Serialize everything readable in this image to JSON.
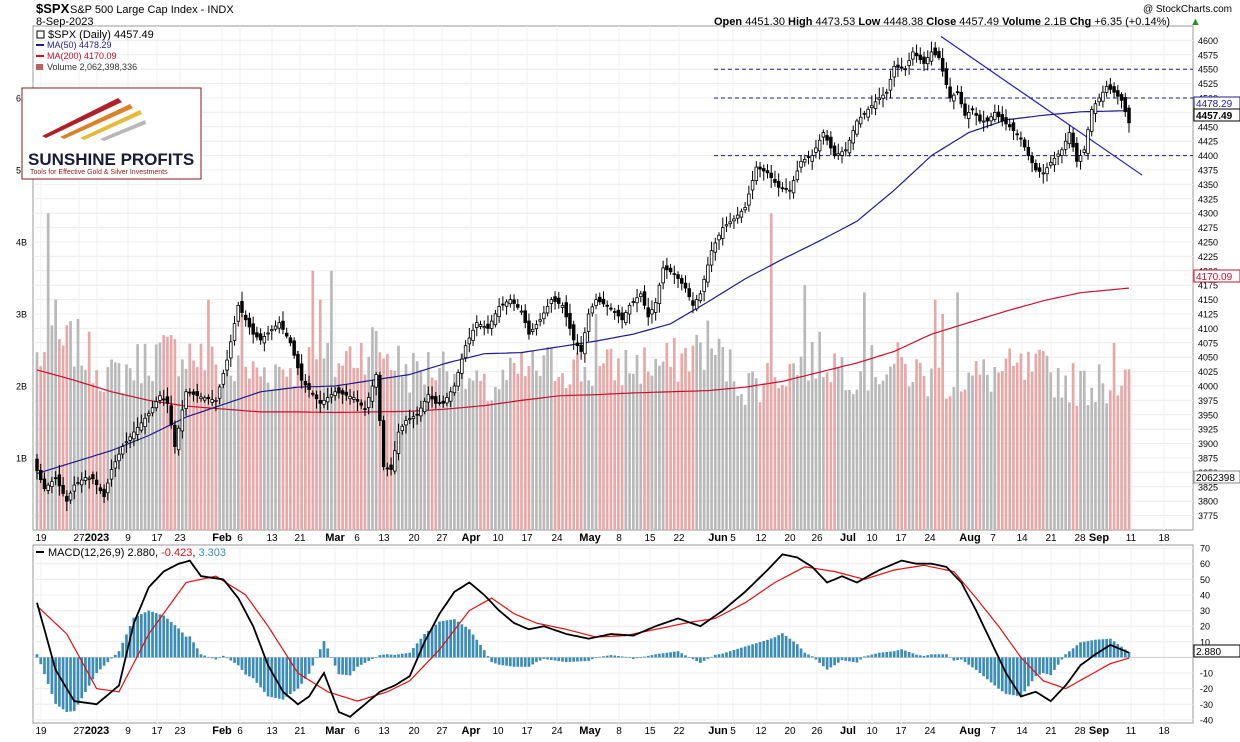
{
  "header": {
    "symbol": "$SPX",
    "name": "S&P 500 Large Cap Index",
    "exchange": "INDX",
    "date": "8-Sep-2023",
    "watermark": "@ StockCharts.com",
    "open_label": "Open",
    "open": "4451.30",
    "high_label": "High",
    "high": "4473.53",
    "low_label": "Low",
    "low": "4448.38",
    "close_label": "Close",
    "close": "4457.49",
    "volume_label": "Volume",
    "volume": "2.1B",
    "chg_label": "Chg",
    "chg": "+6.35 (+0.14%)",
    "chg_arrow": "▲"
  },
  "legend": {
    "price": "$SPX (Daily) 4457.49",
    "ma50": "MA(50) 4478.29",
    "ma200": "MA(200) 4170.09",
    "volume": "Volume 2,062,398,336"
  },
  "logo": {
    "name": "SUNSHINE PROFITS",
    "tagline": "Tools for Effective Gold & Silver Investments"
  },
  "macd_legend": {
    "label": "MACD(12,26,9)",
    "macd": "2.880",
    "signal": "-0.423",
    "hist": "3.303"
  },
  "badges": {
    "ma50": "4478.29",
    "close": "4457.49",
    "ma200": "4170.09",
    "volume": "2062398",
    "macd": "2.880"
  },
  "colors": {
    "up_candle": "#ffffff",
    "down_candle": "#000000",
    "ma50": "#1c1c8c",
    "ma200": "#c8102e",
    "vol_up": "#b9b9b9",
    "vol_down": "#e8a8a8",
    "hist": "#3b8db8",
    "macd_line": "#000000",
    "signal_line": "#e01010",
    "trend": "#2020c0"
  },
  "chart_data": {
    "type": "candlestick",
    "price_axis": {
      "ylim": [
        3750,
        4625
      ],
      "ticks": [
        "4600",
        "4575",
        "4550",
        "4525",
        "4500",
        "4475",
        "4450",
        "4425",
        "4400",
        "4375",
        "4350",
        "4325",
        "4300",
        "4275",
        "4250",
        "4225",
        "4200",
        "4175",
        "4150",
        "4125",
        "4100",
        "4075",
        "4050",
        "4025",
        "4000",
        "3975",
        "3950",
        "3925",
        "3900",
        "3875",
        "3850",
        "3825",
        "3800",
        "3775"
      ]
    },
    "volume_axis": {
      "ylim": [
        0,
        7
      ],
      "unit": "B",
      "ticks": [
        "1B",
        "2B",
        "3B",
        "4B",
        "5B",
        "6B"
      ]
    },
    "macd_axis": {
      "ylim": [
        -42,
        72
      ],
      "ticks": [
        "70",
        "60",
        "50",
        "40",
        "30",
        "20",
        "10",
        "-10",
        "-20",
        "-30",
        "-40"
      ]
    },
    "x_labels": [
      "19",
      "27",
      "2023",
      "9",
      "17",
      "23",
      "Feb",
      "6",
      "13",
      "21",
      "Mar",
      "6",
      "13",
      "20",
      "27",
      "Apr",
      "10",
      "17",
      "24",
      "May",
      "8",
      "15",
      "22",
      "Jun",
      "5",
      "12",
      "20",
      "26",
      "Jul",
      "10",
      "17",
      "24",
      "Aug",
      "7",
      "14",
      "21",
      "28",
      "Sep",
      "11",
      "18"
    ],
    "x_label_positions": [
      41,
      79,
      97,
      128,
      157,
      180,
      222,
      240,
      272,
      300,
      335,
      357,
      384,
      414,
      442,
      471,
      498,
      527,
      557,
      590,
      619,
      650,
      679,
      718,
      733,
      761,
      790,
      817,
      848,
      872,
      901,
      930,
      970,
      993,
      1022,
      1051,
      1080,
      1099,
      1131,
      1164
    ],
    "x_label_bold": [
      "2023",
      "Feb",
      "Mar",
      "Apr",
      "May",
      "Jun",
      "Jul",
      "Aug",
      "Sep"
    ],
    "horizontal_levels": [
      4550,
      4500,
      4400
    ],
    "trendline": {
      "from": [
        "2023-07-27",
        4607
      ],
      "to": [
        "2023-09-11",
        4366
      ]
    },
    "close_key": [
      [
        0,
        3853
      ],
      [
        2,
        3822
      ],
      [
        5,
        3840
      ],
      [
        8,
        3800
      ],
      [
        10,
        3828
      ],
      [
        13,
        3841
      ],
      [
        15,
        3839
      ],
      [
        18,
        3808
      ],
      [
        20,
        3855
      ],
      [
        23,
        3895
      ],
      [
        26,
        3920
      ],
      [
        30,
        3952
      ],
      [
        33,
        3983
      ],
      [
        35,
        3970
      ],
      [
        37,
        3895
      ],
      [
        40,
        3990
      ],
      [
        44,
        3981
      ],
      [
        48,
        3975
      ],
      [
        51,
        4045
      ],
      [
        54,
        4140
      ],
      [
        58,
        4090
      ],
      [
        60,
        4080
      ],
      [
        65,
        4110
      ],
      [
        68,
        4075
      ],
      [
        71,
        4010
      ],
      [
        76,
        3970
      ],
      [
        80,
        3990
      ],
      [
        85,
        3980
      ],
      [
        88,
        3960
      ],
      [
        91,
        4020
      ],
      [
        93,
        3860
      ],
      [
        95,
        3855
      ],
      [
        97,
        3920
      ],
      [
        99,
        3940
      ],
      [
        102,
        3950
      ],
      [
        105,
        3985
      ],
      [
        107,
        3970
      ],
      [
        109,
        3970
      ],
      [
        112,
        4000
      ],
      [
        115,
        4070
      ],
      [
        118,
        4110
      ],
      [
        121,
        4100
      ],
      [
        124,
        4138
      ],
      [
        127,
        4150
      ],
      [
        130,
        4130
      ],
      [
        132,
        4090
      ],
      [
        135,
        4115
      ],
      [
        138,
        4150
      ],
      [
        141,
        4140
      ],
      [
        144,
        4080
      ],
      [
        146,
        4060
      ],
      [
        148,
        4125
      ],
      [
        150,
        4150
      ],
      [
        154,
        4135
      ],
      [
        157,
        4115
      ],
      [
        159,
        4140
      ],
      [
        162,
        4160
      ],
      [
        164,
        4120
      ],
      [
        166,
        4145
      ],
      [
        168,
        4205
      ],
      [
        171,
        4195
      ],
      [
        174,
        4170
      ],
      [
        176,
        4140
      ],
      [
        178,
        4160
      ],
      [
        181,
        4235
      ],
      [
        184,
        4275
      ],
      [
        187,
        4290
      ],
      [
        190,
        4310
      ],
      [
        193,
        4380
      ],
      [
        196,
        4370
      ],
      [
        199,
        4345
      ],
      [
        202,
        4340
      ],
      [
        205,
        4390
      ],
      [
        208,
        4400
      ],
      [
        211,
        4440
      ],
      [
        214,
        4400
      ],
      [
        217,
        4410
      ],
      [
        220,
        4460
      ],
      [
        223,
        4480
      ],
      [
        226,
        4500
      ],
      [
        228,
        4510
      ],
      [
        230,
        4555
      ],
      [
        233,
        4550
      ],
      [
        235,
        4580
      ],
      [
        238,
        4560
      ],
      [
        240,
        4580
      ],
      [
        242,
        4570
      ],
      [
        245,
        4500
      ],
      [
        247,
        4510
      ],
      [
        249,
        4470
      ],
      [
        251,
        4480
      ],
      [
        253,
        4460
      ],
      [
        255,
        4460
      ],
      [
        257,
        4475
      ],
      [
        259,
        4460
      ],
      [
        261,
        4450
      ],
      [
        264,
        4430
      ],
      [
        266,
        4400
      ],
      [
        268,
        4375
      ],
      [
        270,
        4370
      ],
      [
        272,
        4388
      ],
      [
        275,
        4410
      ],
      [
        277,
        4440
      ],
      [
        279,
        4390
      ],
      [
        281,
        4410
      ],
      [
        283,
        4480
      ],
      [
        285,
        4500
      ],
      [
        287,
        4520
      ],
      [
        289,
        4510
      ],
      [
        291,
        4496
      ],
      [
        293,
        4457
      ]
    ],
    "ma50_key": [
      [
        0,
        3848
      ],
      [
        10,
        3868
      ],
      [
        20,
        3888
      ],
      [
        30,
        3914
      ],
      [
        40,
        3946
      ],
      [
        50,
        3968
      ],
      [
        60,
        3990
      ],
      [
        70,
        3998
      ],
      [
        80,
        4000
      ],
      [
        90,
        4010
      ],
      [
        100,
        4020
      ],
      [
        110,
        4040
      ],
      [
        120,
        4056
      ],
      [
        130,
        4058
      ],
      [
        140,
        4068
      ],
      [
        150,
        4078
      ],
      [
        160,
        4090
      ],
      [
        170,
        4108
      ],
      [
        180,
        4146
      ],
      [
        190,
        4186
      ],
      [
        200,
        4220
      ],
      [
        210,
        4252
      ],
      [
        220,
        4286
      ],
      [
        230,
        4340
      ],
      [
        240,
        4400
      ],
      [
        250,
        4440
      ],
      [
        260,
        4462
      ],
      [
        270,
        4470
      ],
      [
        280,
        4476
      ],
      [
        293,
        4478
      ]
    ],
    "ma200_key": [
      [
        0,
        4028
      ],
      [
        10,
        4010
      ],
      [
        20,
        3990
      ],
      [
        30,
        3975
      ],
      [
        40,
        3965
      ],
      [
        50,
        3960
      ],
      [
        60,
        3955
      ],
      [
        70,
        3955
      ],
      [
        80,
        3954
      ],
      [
        90,
        3955
      ],
      [
        100,
        3956
      ],
      [
        110,
        3960
      ],
      [
        120,
        3966
      ],
      [
        130,
        3975
      ],
      [
        140,
        3983
      ],
      [
        150,
        3985
      ],
      [
        160,
        3988
      ],
      [
        170,
        3990
      ],
      [
        180,
        3992
      ],
      [
        190,
        3998
      ],
      [
        200,
        4008
      ],
      [
        210,
        4024
      ],
      [
        220,
        4040
      ],
      [
        230,
        4060
      ],
      [
        240,
        4090
      ],
      [
        250,
        4110
      ],
      [
        260,
        4130
      ],
      [
        270,
        4148
      ],
      [
        280,
        4162
      ],
      [
        293,
        4170
      ]
    ],
    "volume_key": [
      [
        0,
        2.4
      ],
      [
        10,
        2.6
      ],
      [
        20,
        2.1
      ],
      [
        30,
        2.4
      ],
      [
        40,
        2.5
      ],
      [
        50,
        2.2
      ],
      [
        60,
        2.2
      ],
      [
        70,
        2.3
      ],
      [
        80,
        2.3
      ],
      [
        90,
        2.6
      ],
      [
        100,
        2.2
      ],
      [
        110,
        2.3
      ],
      [
        120,
        1.9
      ],
      [
        130,
        2.2
      ],
      [
        140,
        2.3
      ],
      [
        150,
        2.2
      ],
      [
        160,
        2.3
      ],
      [
        170,
        2.3
      ],
      [
        180,
        2.6
      ],
      [
        190,
        2.0
      ],
      [
        200,
        2.2
      ],
      [
        210,
        2.4
      ],
      [
        220,
        2.2
      ],
      [
        230,
        2.3
      ],
      [
        240,
        2.1
      ],
      [
        250,
        2.1
      ],
      [
        260,
        2.2
      ],
      [
        270,
        2.2
      ],
      [
        280,
        2.0
      ],
      [
        293,
        2.06
      ]
    ],
    "volume_spikes": [
      [
        3,
        4.4
      ],
      [
        5,
        3.2
      ],
      [
        46,
        3.2
      ],
      [
        55,
        3.0
      ],
      [
        74,
        3.6
      ],
      [
        76,
        3.2
      ],
      [
        79,
        3.6
      ],
      [
        150,
        3.0
      ],
      [
        197,
        4.4
      ],
      [
        206,
        3.4
      ],
      [
        222,
        3.3
      ],
      [
        241,
        3.2
      ],
      [
        243,
        3.0
      ],
      [
        247,
        3.3
      ],
      [
        285,
        2.3
      ],
      [
        289,
        2.6
      ]
    ],
    "macd_key": [
      [
        0,
        35
      ],
      [
        5,
        -8
      ],
      [
        10,
        -28
      ],
      [
        16,
        -30
      ],
      [
        22,
        -18
      ],
      [
        26,
        22
      ],
      [
        30,
        45
      ],
      [
        34,
        55
      ],
      [
        38,
        60
      ],
      [
        41,
        62
      ],
      [
        44,
        52
      ],
      [
        50,
        50
      ],
      [
        54,
        38
      ],
      [
        58,
        20
      ],
      [
        62,
        -5
      ],
      [
        66,
        -22
      ],
      [
        70,
        -30
      ],
      [
        73,
        -25
      ],
      [
        77,
        -10
      ],
      [
        81,
        -35
      ],
      [
        84,
        -38
      ],
      [
        88,
        -30
      ],
      [
        92,
        -22
      ],
      [
        96,
        -18
      ],
      [
        100,
        -12
      ],
      [
        104,
        10
      ],
      [
        108,
        28
      ],
      [
        112,
        42
      ],
      [
        116,
        48
      ],
      [
        120,
        40
      ],
      [
        124,
        30
      ],
      [
        128,
        22
      ],
      [
        132,
        18
      ],
      [
        136,
        20
      ],
      [
        142,
        15
      ],
      [
        148,
        12
      ],
      [
        154,
        15
      ],
      [
        160,
        14
      ],
      [
        166,
        20
      ],
      [
        172,
        25
      ],
      [
        178,
        20
      ],
      [
        184,
        30
      ],
      [
        190,
        42
      ],
      [
        196,
        56
      ],
      [
        200,
        66
      ],
      [
        204,
        64
      ],
      [
        208,
        58
      ],
      [
        212,
        48
      ],
      [
        216,
        52
      ],
      [
        220,
        48
      ],
      [
        226,
        56
      ],
      [
        232,
        62
      ],
      [
        236,
        60
      ],
      [
        240,
        60
      ],
      [
        244,
        58
      ],
      [
        248,
        48
      ],
      [
        252,
        30
      ],
      [
        256,
        10
      ],
      [
        260,
        -10
      ],
      [
        264,
        -25
      ],
      [
        268,
        -22
      ],
      [
        272,
        -28
      ],
      [
        276,
        -18
      ],
      [
        280,
        -5
      ],
      [
        284,
        2
      ],
      [
        288,
        8
      ],
      [
        293,
        3
      ]
    ],
    "signal_key": [
      [
        0,
        33
      ],
      [
        8,
        15
      ],
      [
        16,
        -20
      ],
      [
        22,
        -22
      ],
      [
        30,
        15
      ],
      [
        40,
        48
      ],
      [
        48,
        52
      ],
      [
        56,
        40
      ],
      [
        62,
        20
      ],
      [
        70,
        -10
      ],
      [
        78,
        -22
      ],
      [
        86,
        -28
      ],
      [
        94,
        -22
      ],
      [
        100,
        -15
      ],
      [
        108,
        5
      ],
      [
        116,
        30
      ],
      [
        122,
        38
      ],
      [
        128,
        28
      ],
      [
        134,
        22
      ],
      [
        142,
        18
      ],
      [
        150,
        13
      ],
      [
        158,
        14
      ],
      [
        166,
        18
      ],
      [
        174,
        22
      ],
      [
        182,
        25
      ],
      [
        190,
        35
      ],
      [
        198,
        48
      ],
      [
        206,
        58
      ],
      [
        214,
        55
      ],
      [
        222,
        50
      ],
      [
        230,
        56
      ],
      [
        238,
        59
      ],
      [
        246,
        55
      ],
      [
        252,
        38
      ],
      [
        258,
        20
      ],
      [
        264,
        0
      ],
      [
        270,
        -15
      ],
      [
        276,
        -20
      ],
      [
        282,
        -12
      ],
      [
        288,
        -4
      ],
      [
        293,
        -0.4
      ]
    ]
  }
}
